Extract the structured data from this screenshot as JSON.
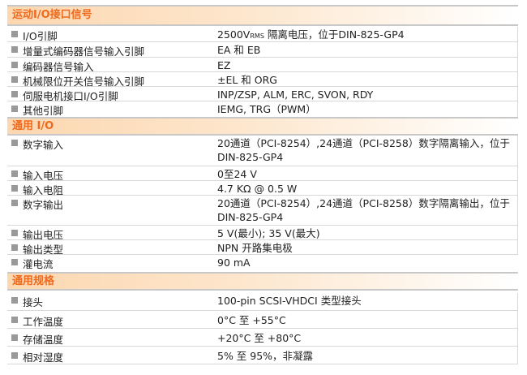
{
  "sections": [
    {
      "title": "运动I/O接口信号",
      "rows": [
        {
          "label": "I/O引脚",
          "value": "2500V",
          "value_sub": "RMS",
          "value_rest": " 隔离电压，位于DIN-825-GP4"
        },
        {
          "label": "增量式编码器信号输入引脚",
          "value": "EA 和 EB"
        },
        {
          "label": "编码器信号输入",
          "value": "EZ"
        },
        {
          "label": "机械限位开关信号输入引脚",
          "value": "±EL 和 ORG"
        },
        {
          "label": "伺服电机接口I/O引脚",
          "value": "INP/ZSP, ALM, ERC, SVON, RDY"
        },
        {
          "label": "其他引脚",
          "value": "IEMG, TRG（PWM）"
        }
      ]
    },
    {
      "title": "通用 I/O",
      "rows": [
        {
          "label": "数字输入",
          "value": "20通道（PCI-8254）,24通道（PCI-8258）数字隔离输入，位于DIN-825-GP4"
        },
        {
          "label": "输入电压",
          "value": "0至24 V"
        },
        {
          "label": "输入电阻",
          "value": "4.7 KΩ @ 0.5 W"
        },
        {
          "label": "数字输出",
          "value": "20通道（PCI-8254）,24通道（PCI-8258）数字隔离输出，位于DIN-825-GP4"
        },
        {
          "label": "输出电压",
          "value": "5 V(最小); 35 V(最大)"
        },
        {
          "label": "输出类型",
          "value": "NPN 开路集电极"
        },
        {
          "label": "灌电流",
          "value": "90 mA"
        }
      ]
    },
    {
      "title": "通用规格",
      "rows": [
        {
          "label": "接头",
          "value": "100-pin SCSI-VHDCI 类型接头"
        },
        {
          "label": "工作温度",
          "value": "0°C 至 +55°C"
        },
        {
          "label": "存储温度",
          "value": "+20°C 至 +80°C"
        },
        {
          "label": "相对湿度",
          "value": "5% 至 95%，非凝露"
        }
      ]
    }
  ],
  "colors": {
    "header_text": "#ee6a1f",
    "header_bg": "#fcd7b0",
    "bullet": "#999999"
  }
}
